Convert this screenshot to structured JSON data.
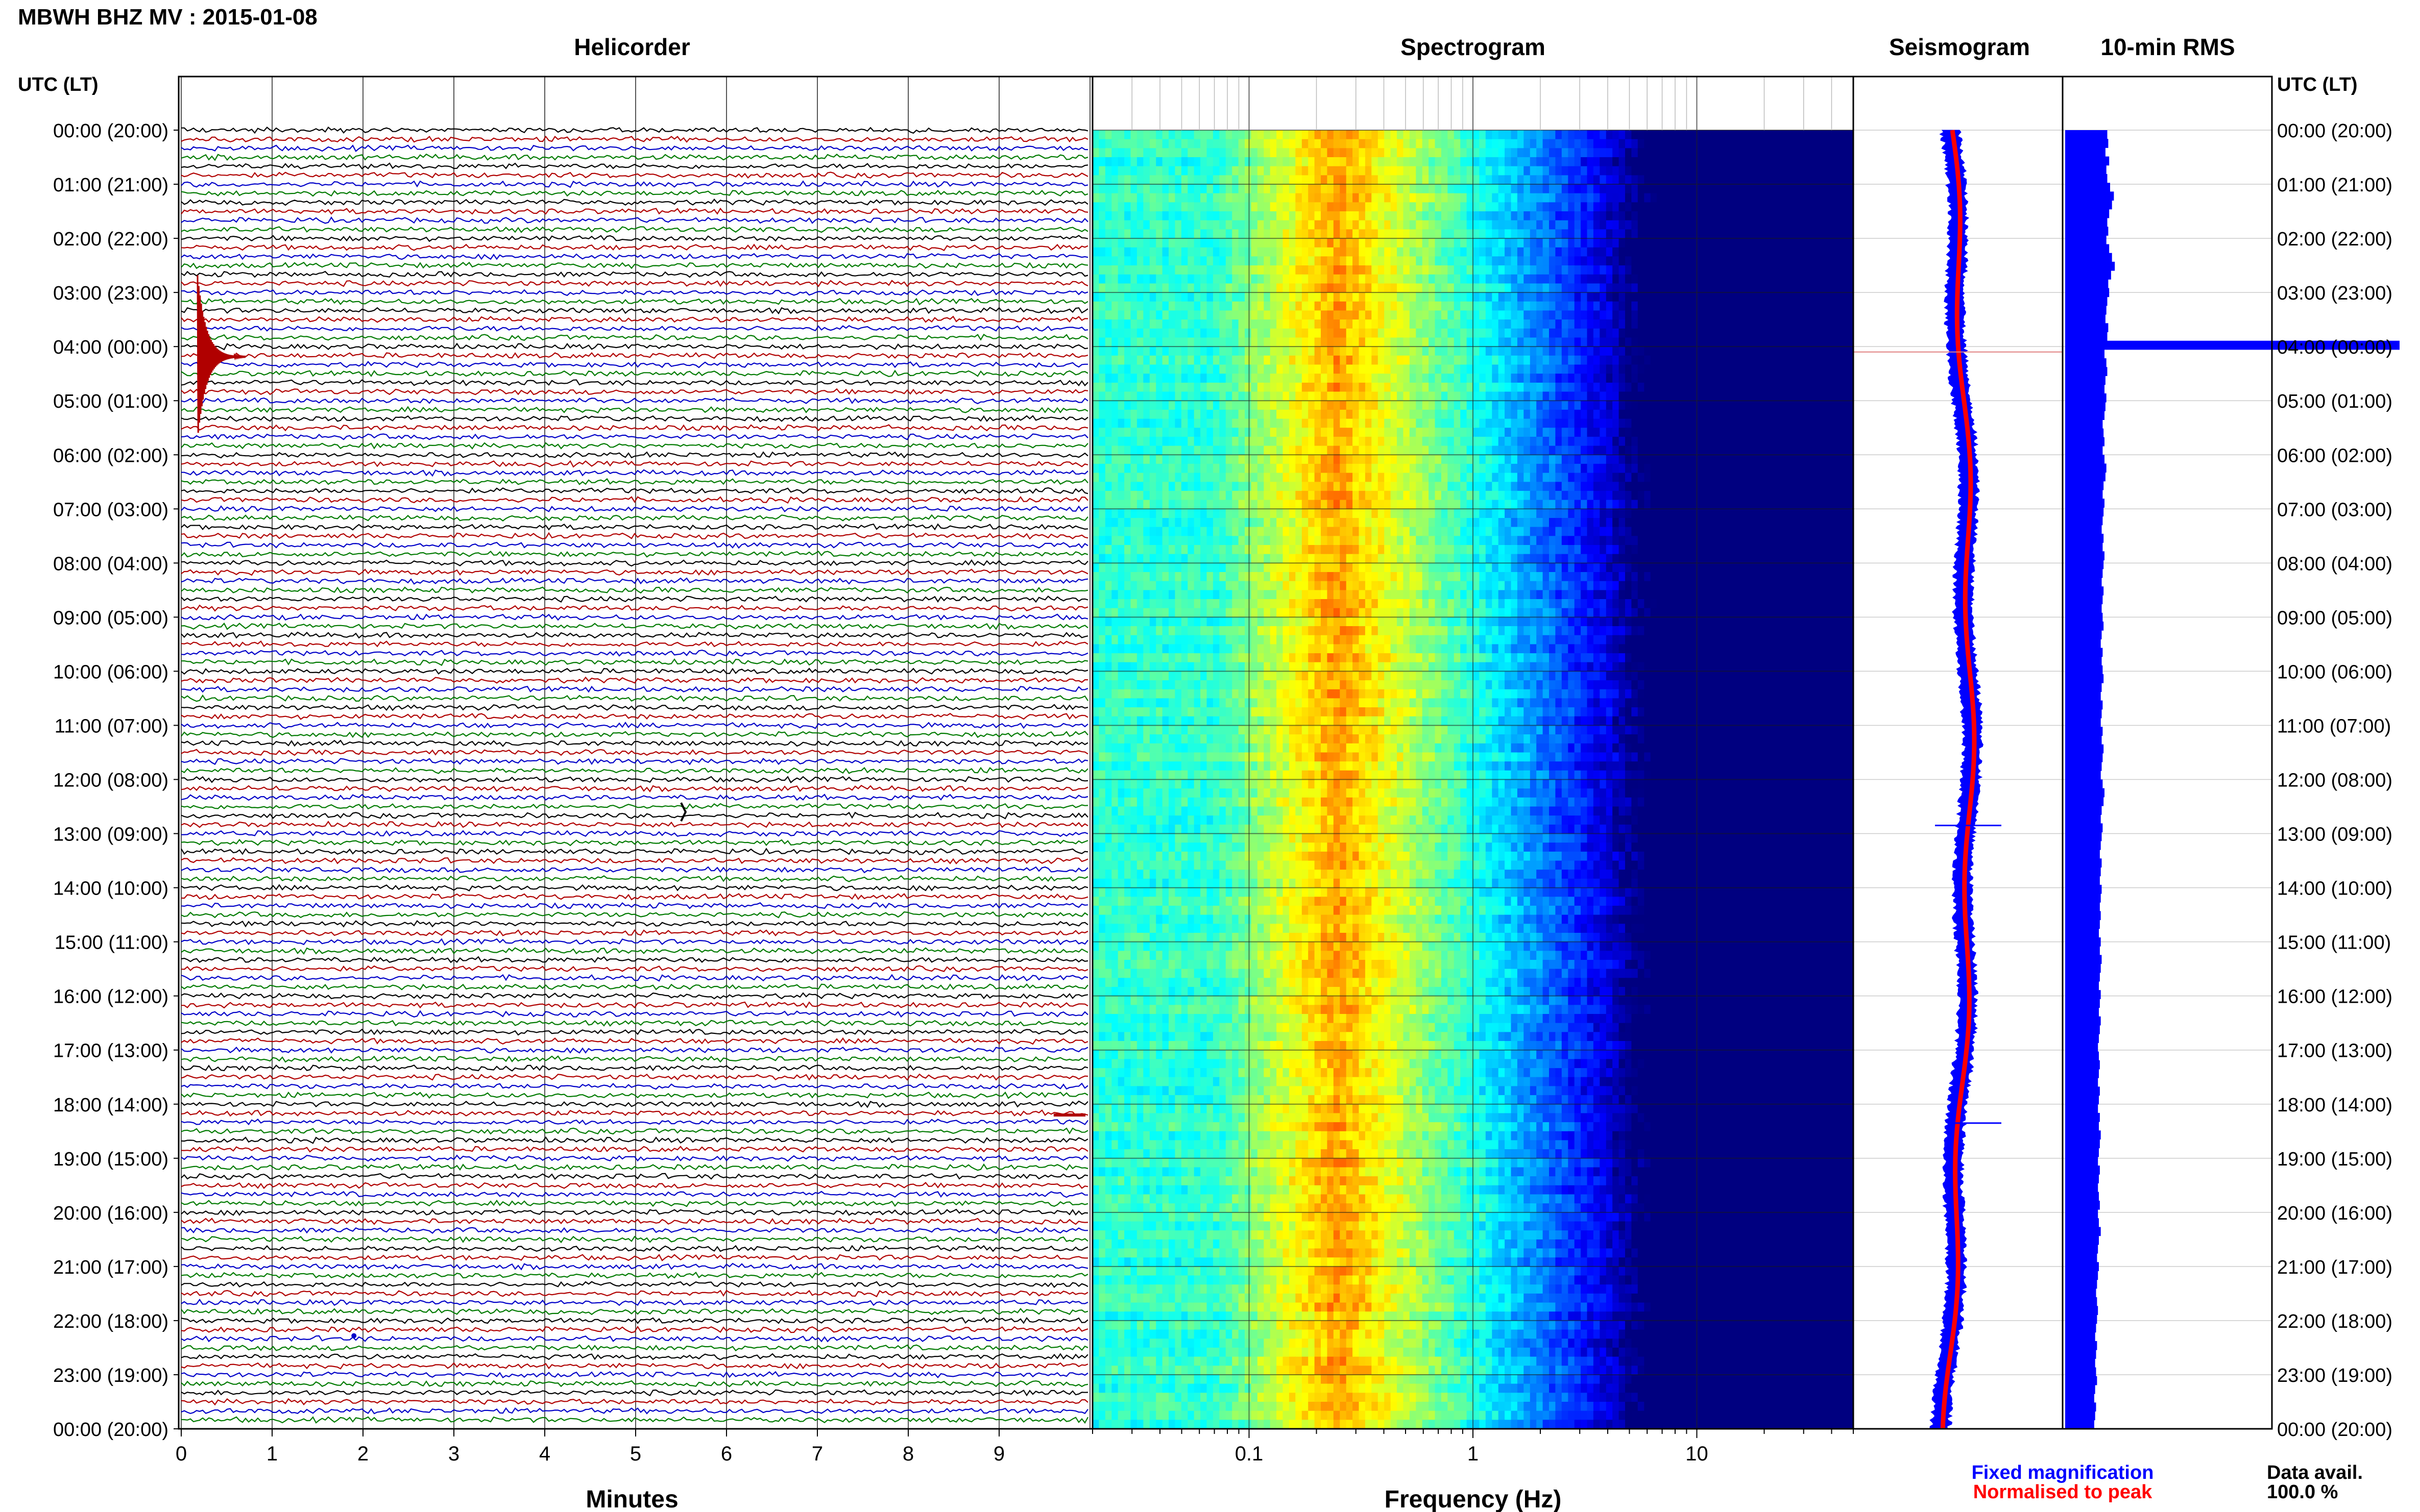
{
  "header": {
    "station_title": "MBWH BHZ MV : 2015-01-08",
    "utc_lt_left": "UTC (LT)",
    "utc_lt_right": "UTC (LT)"
  },
  "panels": {
    "helicorder": "Helicorder",
    "spectrogram": "Spectrogram",
    "seismogram": "Seismogram",
    "rms": "10-min RMS"
  },
  "axes": {
    "minutes_label": "Minutes",
    "frequency_label": "Frequency (Hz)",
    "minute_ticks": [
      "0",
      "1",
      "2",
      "3",
      "4",
      "5",
      "6",
      "7",
      "8",
      "9"
    ],
    "frequency_ticks": [
      "0.1",
      "1",
      "10"
    ]
  },
  "time_labels": [
    "00:00 (20:00)",
    "01:00 (21:00)",
    "02:00 (22:00)",
    "03:00 (23:00)",
    "04:00 (00:00)",
    "05:00 (01:00)",
    "06:00 (02:00)",
    "07:00 (03:00)",
    "08:00 (04:00)",
    "09:00 (05:00)",
    "10:00 (06:00)",
    "11:00 (07:00)",
    "12:00 (08:00)",
    "13:00 (09:00)",
    "14:00 (10:00)",
    "15:00 (11:00)",
    "16:00 (12:00)",
    "17:00 (13:00)",
    "18:00 (14:00)",
    "19:00 (15:00)",
    "20:00 (16:00)",
    "21:00 (17:00)",
    "22:00 (18:00)",
    "23:00 (19:00)",
    "00:00 (20:00)"
  ],
  "legend": {
    "fixed": "Fixed magnification",
    "normalised": "Normalised to peak",
    "data_avail_label": "Data avail.",
    "data_avail_value": "100.0 %"
  },
  "colors": {
    "trace_black": "#000000",
    "trace_red": "#b00000",
    "trace_blue": "#0000c8",
    "trace_green": "#007a00",
    "fixed_mag": "#0000ff",
    "normalised": "#ff0000",
    "rms_fill": "#0000ff"
  },
  "chart_data": {
    "type": "heatmap",
    "title": "MBWH BHZ MV : 2015-01-08",
    "helicorder": {
      "xlabel": "Minutes",
      "xlim": [
        0,
        10
      ],
      "rows_per_hour": 6,
      "hours": 24,
      "trace_color_cycle": [
        "black",
        "red",
        "blue",
        "green"
      ],
      "events": [
        {
          "time_utc": "04:00",
          "minute": 0.2,
          "description": "large transient"
        },
        {
          "time_utc": "12:40",
          "minute": 5.5,
          "description": "small transient"
        },
        {
          "time_utc": "18:10",
          "minute": 9.8,
          "description": "small transient"
        },
        {
          "time_utc": "22:10",
          "minute": 1.9,
          "description": "spike"
        }
      ]
    },
    "spectrogram": {
      "xlabel": "Frequency (Hz)",
      "xscale": "log",
      "xlim": [
        0.02,
        50
      ],
      "peak_frequency_hz": 0.25,
      "colormap": "jet"
    },
    "rms_10min": {
      "values": [
        0.45,
        0.46,
        0.43,
        0.47,
        0.44,
        0.45,
        0.48,
        0.52,
        0.5,
        0.47,
        0.45,
        0.46,
        0.44,
        0.47,
        0.5,
        0.53,
        0.49,
        0.46,
        0.47,
        0.45,
        0.44,
        0.43,
        0.46,
        0.45,
        1.0,
        0.42,
        0.44,
        0.45,
        0.43,
        0.42,
        0.44,
        0.43,
        0.42,
        0.4,
        0.41,
        0.42,
        0.4,
        0.42,
        0.44,
        0.43,
        0.41,
        0.4,
        0.42,
        0.41,
        0.4,
        0.39,
        0.41,
        0.4,
        0.42,
        0.41,
        0.4,
        0.39,
        0.41,
        0.4,
        0.39,
        0.4,
        0.41,
        0.39,
        0.38,
        0.4,
        0.39,
        0.4,
        0.41,
        0.39,
        0.38,
        0.4,
        0.39,
        0.38,
        0.4,
        0.39,
        0.41,
        0.4,
        0.39,
        0.38,
        0.4,
        0.42,
        0.41,
        0.39,
        0.38,
        0.4,
        0.39,
        0.38,
        0.37,
        0.39,
        0.38,
        0.37,
        0.39,
        0.38,
        0.37,
        0.38,
        0.37,
        0.36,
        0.38,
        0.37,
        0.39,
        0.38,
        0.37,
        0.36,
        0.38,
        0.37,
        0.36,
        0.38,
        0.37,
        0.36,
        0.35,
        0.36,
        0.37,
        0.36,
        0.35,
        0.37,
        0.36,
        0.35,
        0.37,
        0.36,
        0.38,
        0.37,
        0.36,
        0.35,
        0.37,
        0.36,
        0.35,
        0.36,
        0.37,
        0.35,
        0.36,
        0.38,
        0.36,
        0.35,
        0.34,
        0.36,
        0.35,
        0.34,
        0.33,
        0.34,
        0.35,
        0.34,
        0.33,
        0.32,
        0.34,
        0.33,
        0.32,
        0.33,
        0.34,
        0.32,
        0.31,
        0.33,
        0.32,
        0.31
      ]
    }
  }
}
